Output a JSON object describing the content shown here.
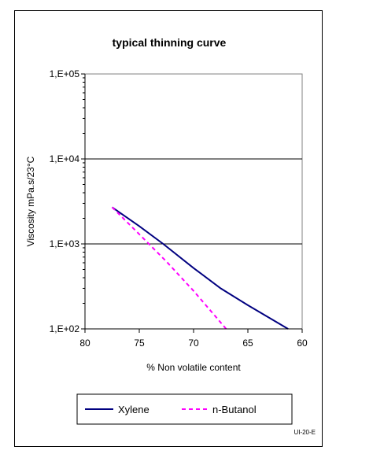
{
  "chart_data": {
    "type": "line",
    "title": "typical thinning curve",
    "xlabel": "% Non volatile content",
    "ylabel": "Viscosity mPa.s/23°C",
    "x_reversed": true,
    "y_scale": "log",
    "xlim": [
      80,
      60
    ],
    "ylim": [
      100,
      100000
    ],
    "x_ticks": [
      "80",
      "75",
      "70",
      "65",
      "60"
    ],
    "x_tick_values": [
      80,
      75,
      70,
      65,
      60
    ],
    "y_ticks": [
      "1,E+02",
      "1,E+03",
      "1,E+04",
      "1,E+05"
    ],
    "y_tick_values": [
      100,
      1000,
      10000,
      100000
    ],
    "grid": "horizontal major lines",
    "legend_position": "bottom",
    "series": [
      {
        "name": "Xylene",
        "color": "#000080",
        "style": "solid",
        "x": [
          77.5,
          75,
          72.8,
          70,
          67.5,
          65,
          61.3
        ],
        "y": [
          2700,
          1620,
          1000,
          520,
          300,
          190,
          100
        ]
      },
      {
        "name": "n-Butanol",
        "color": "#ff00ff",
        "style": "dashed",
        "x": [
          77.5,
          75,
          72.5,
          70,
          67
        ],
        "y": [
          2700,
          1300,
          620,
          280,
          100
        ]
      }
    ]
  },
  "footnote": "UI-20-E"
}
